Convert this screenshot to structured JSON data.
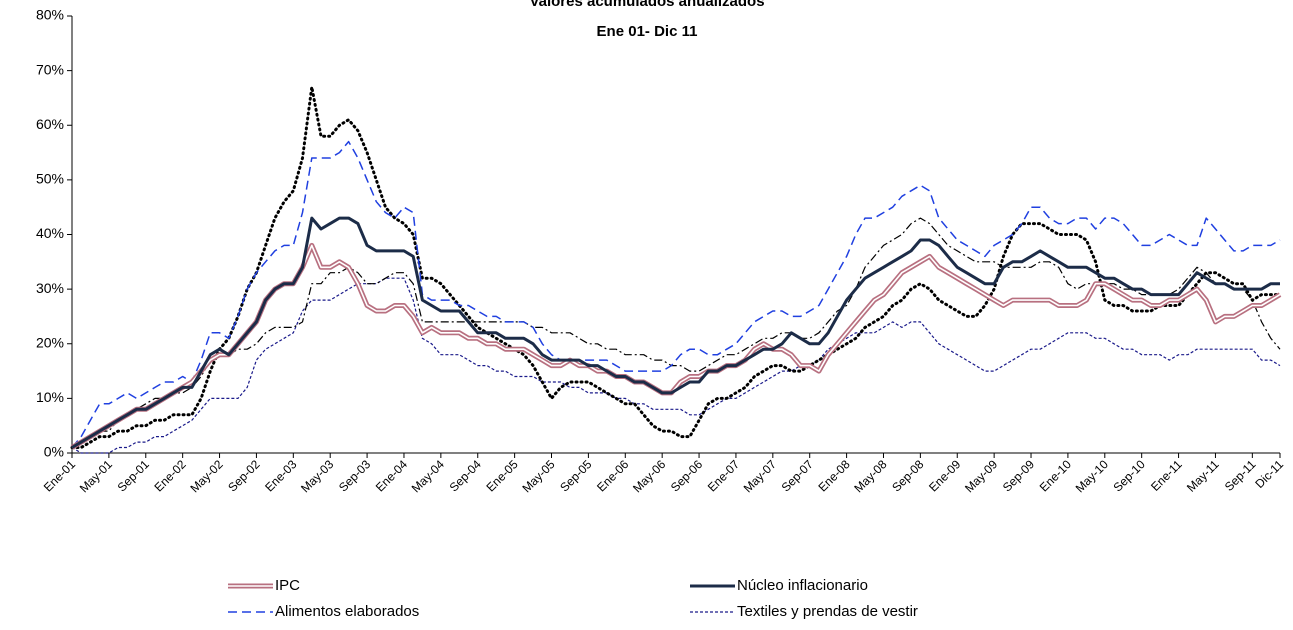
{
  "chart_data": {
    "type": "line",
    "title": "Valores  acumulados anualizados",
    "subtitle": "Ene 01-  Dic 11",
    "categories": [
      "Ene-01",
      null,
      null,
      null,
      "May-01",
      null,
      null,
      null,
      "Sep-01",
      null,
      null,
      null,
      "Ene-02",
      null,
      null,
      null,
      "May-02",
      null,
      null,
      null,
      "Sep-02",
      null,
      null,
      null,
      "Ene-03",
      null,
      null,
      null,
      "May-03",
      null,
      null,
      null,
      "Sep-03",
      null,
      null,
      null,
      "Ene-04",
      null,
      null,
      null,
      "May-04",
      null,
      null,
      null,
      "Sep-04",
      null,
      null,
      null,
      "Ene-05",
      null,
      null,
      null,
      "May-05",
      null,
      null,
      null,
      "Sep-05",
      null,
      null,
      null,
      "Ene-06",
      null,
      null,
      null,
      "May-06",
      null,
      null,
      null,
      "Sep-06",
      null,
      null,
      null,
      "Ene-07",
      null,
      null,
      null,
      "May-07",
      null,
      null,
      null,
      "Sep-07",
      null,
      null,
      null,
      "Ene-08",
      null,
      null,
      null,
      "May-08",
      null,
      null,
      null,
      "Sep-08",
      null,
      null,
      null,
      "Ene-09",
      null,
      null,
      null,
      "May-09",
      null,
      null,
      null,
      "Sep-09",
      null,
      null,
      null,
      "Ene-10",
      null,
      null,
      null,
      "May-10",
      null,
      null,
      null,
      "Sep-10",
      null,
      null,
      null,
      "Ene-11",
      null,
      null,
      null,
      "May-11",
      null,
      null,
      null,
      "Sep-11",
      null,
      null,
      "Dic-11"
    ],
    "series": [
      {
        "name": "IPC",
        "color": "#b87080",
        "style": "double",
        "values": [
          1,
          2,
          3,
          4,
          5,
          6,
          7,
          8,
          8,
          9,
          10,
          11,
          12,
          13,
          15,
          17,
          18,
          18,
          20,
          22,
          24,
          28,
          30,
          31,
          31,
          34,
          38,
          34,
          34,
          35,
          34,
          31,
          27,
          26,
          26,
          27,
          27,
          25,
          22,
          23,
          22,
          22,
          22,
          21,
          21,
          20,
          20,
          19,
          19,
          19,
          18,
          17,
          16,
          16,
          17,
          16,
          16,
          15,
          15,
          14,
          14,
          13,
          13,
          12,
          11,
          11,
          13,
          14,
          14,
          15,
          15,
          16,
          16,
          17,
          19,
          20,
          19,
          19,
          18,
          16,
          16,
          15,
          18,
          20,
          22,
          24,
          26,
          28,
          29,
          31,
          33,
          34,
          35,
          36,
          34,
          33,
          32,
          31,
          30,
          29,
          28,
          27,
          28,
          28,
          28,
          28,
          28,
          27,
          27,
          27,
          28,
          31,
          31,
          30,
          29,
          28,
          28,
          27,
          27,
          28,
          28,
          29,
          30,
          28,
          24,
          25,
          25,
          26,
          27,
          27,
          28,
          29
        ]
      },
      {
        "name": "Núcleo inflacionario",
        "color": "#1c2c48",
        "style": "solid",
        "values": [
          1,
          2,
          3,
          4,
          5,
          6,
          7,
          8,
          8,
          9,
          10,
          11,
          12,
          12,
          15,
          18,
          19,
          18,
          20,
          22,
          24,
          28,
          30,
          31,
          31,
          34,
          43,
          41,
          42,
          43,
          43,
          42,
          38,
          37,
          37,
          37,
          37,
          36,
          28,
          27,
          26,
          26,
          26,
          24,
          22,
          22,
          22,
          21,
          21,
          21,
          20,
          18,
          17,
          17,
          17,
          17,
          16,
          16,
          15,
          14,
          14,
          13,
          13,
          12,
          11,
          11,
          12,
          13,
          13,
          15,
          15,
          16,
          16,
          17,
          18,
          19,
          19,
          20,
          22,
          21,
          20,
          20,
          22,
          25,
          28,
          30,
          32,
          33,
          34,
          35,
          36,
          37,
          39,
          39,
          38,
          36,
          34,
          33,
          32,
          31,
          31,
          34,
          35,
          35,
          36,
          37,
          36,
          35,
          34,
          34,
          34,
          33,
          32,
          32,
          31,
          30,
          30,
          29,
          29,
          29,
          29,
          31,
          33,
          32,
          31,
          31,
          30,
          30,
          30,
          30,
          31,
          31
        ]
      },
      {
        "name": "Alimentos elaborados",
        "color": "#2040e0",
        "style": "dashed",
        "values": [
          1,
          3,
          6,
          9,
          9,
          10,
          11,
          10,
          11,
          12,
          13,
          13,
          14,
          13,
          17,
          22,
          22,
          21,
          25,
          30,
          33,
          35,
          37,
          38,
          38,
          44,
          54,
          54,
          54,
          55,
          57,
          54,
          50,
          46,
          44,
          43,
          45,
          44,
          29,
          28,
          28,
          28,
          27,
          27,
          26,
          25,
          25,
          24,
          24,
          24,
          23,
          20,
          18,
          17,
          17,
          17,
          17,
          17,
          17,
          16,
          15,
          15,
          15,
          15,
          15,
          16,
          18,
          19,
          19,
          18,
          18,
          19,
          20,
          22,
          24,
          25,
          26,
          26,
          25,
          25,
          26,
          27,
          30,
          33,
          36,
          40,
          43,
          43,
          44,
          45,
          47,
          48,
          49,
          48,
          43,
          41,
          39,
          38,
          37,
          36,
          38,
          39,
          40,
          42,
          45,
          45,
          43,
          42,
          42,
          43,
          43,
          41,
          43,
          43,
          42,
          40,
          38,
          38,
          39,
          40,
          39,
          38,
          38,
          43,
          41,
          39,
          37,
          37,
          38,
          38,
          38,
          39
        ]
      },
      {
        "name": "Textiles y prendas de vestir",
        "color": "#1a1a8a",
        "style": "short",
        "values": [
          1,
          0,
          0,
          0,
          0,
          1,
          1,
          2,
          2,
          3,
          3,
          4,
          5,
          6,
          8,
          10,
          10,
          10,
          10,
          12,
          17,
          19,
          20,
          21,
          22,
          26,
          28,
          28,
          28,
          29,
          30,
          31,
          31,
          31,
          32,
          32,
          32,
          28,
          21,
          20,
          18,
          18,
          18,
          17,
          16,
          16,
          15,
          15,
          14,
          14,
          14,
          13,
          13,
          13,
          12,
          12,
          11,
          11,
          11,
          10,
          10,
          9,
          9,
          8,
          8,
          8,
          8,
          7,
          7,
          8,
          9,
          10,
          10,
          11,
          12,
          13,
          14,
          15,
          15,
          16,
          16,
          17,
          19,
          20,
          21,
          22,
          22,
          22,
          23,
          24,
          23,
          24,
          24,
          22,
          20,
          19,
          18,
          17,
          16,
          15,
          15,
          16,
          17,
          18,
          19,
          19,
          20,
          21,
          22,
          22,
          22,
          21,
          21,
          20,
          19,
          19,
          18,
          18,
          18,
          17,
          18,
          18,
          19,
          19,
          19,
          19,
          19,
          19,
          19,
          17,
          17,
          16
        ]
      },
      {
        "color": "#000000",
        "style": "dotted",
        "values": [
          1,
          1,
          2,
          3,
          3,
          4,
          4,
          5,
          5,
          6,
          6,
          7,
          7,
          7,
          10,
          15,
          19,
          21,
          25,
          30,
          33,
          38,
          43,
          46,
          48,
          54,
          67,
          58,
          58,
          60,
          61,
          59,
          55,
          50,
          45,
          43,
          42,
          40,
          32,
          32,
          31,
          29,
          27,
          25,
          23,
          22,
          21,
          20,
          19,
          18,
          16,
          13,
          10,
          12,
          13,
          13,
          13,
          12,
          11,
          10,
          9,
          9,
          7,
          5,
          4,
          4,
          3,
          3,
          6,
          9,
          10,
          10,
          11,
          12,
          14,
          15,
          16,
          16,
          15,
          15,
          16,
          17,
          18,
          19,
          20,
          21,
          23,
          24,
          25,
          27,
          28,
          30,
          31,
          30,
          28,
          27,
          26,
          25,
          25,
          27,
          30,
          36,
          40,
          42,
          42,
          42,
          41,
          40,
          40,
          40,
          39,
          35,
          28,
          27,
          27,
          26,
          26,
          26,
          27,
          27,
          27,
          29,
          31,
          33,
          33,
          32,
          31,
          31,
          28,
          29,
          29,
          29
        ]
      },
      {
        "color": "#000000",
        "style": "dashdot",
        "values": [
          1,
          2,
          3,
          4,
          4,
          6,
          7,
          8,
          9,
          10,
          10,
          11,
          11,
          12,
          14,
          17,
          18,
          18,
          19,
          19,
          20,
          22,
          23,
          23,
          23,
          24,
          31,
          31,
          33,
          33,
          34,
          33,
          31,
          31,
          32,
          33,
          33,
          31,
          24,
          24,
          24,
          24,
          24,
          24,
          24,
          24,
          24,
          24,
          24,
          24,
          23,
          23,
          22,
          22,
          22,
          21,
          20,
          20,
          19,
          19,
          18,
          18,
          18,
          17,
          17,
          16,
          16,
          15,
          15,
          16,
          17,
          18,
          18,
          19,
          20,
          21,
          21,
          22,
          22,
          21,
          21,
          22,
          24,
          26,
          27,
          30,
          34,
          36,
          38,
          39,
          40,
          42,
          43,
          42,
          40,
          38,
          37,
          36,
          35,
          35,
          35,
          34,
          34,
          34,
          34,
          35,
          35,
          34,
          31,
          30,
          31,
          31,
          31,
          31,
          30,
          30,
          29,
          29,
          29,
          29,
          30,
          32,
          34,
          33,
          31,
          31,
          30,
          30,
          28,
          24,
          21,
          19
        ]
      }
    ],
    "ylim": [
      0,
      80
    ],
    "yticks": [
      {
        "value": 0,
        "label": "0%"
      },
      {
        "value": 10,
        "label": "10%"
      },
      {
        "value": 20,
        "label": "20%"
      },
      {
        "value": 30,
        "label": "30%"
      },
      {
        "value": 40,
        "label": "40%"
      },
      {
        "value": 50,
        "label": "50%"
      },
      {
        "value": 60,
        "label": "60%"
      },
      {
        "value": 70,
        "label": "70%"
      },
      {
        "value": 80,
        "label": "80%"
      }
    ],
    "grid": false
  }
}
